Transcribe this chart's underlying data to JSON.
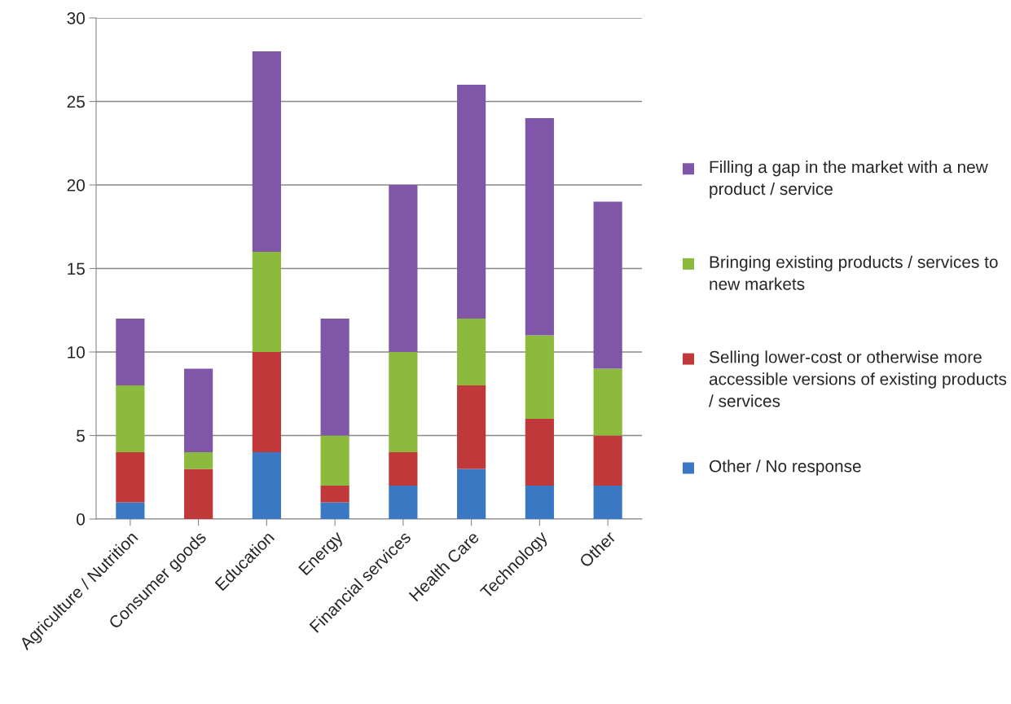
{
  "chart_data": {
    "type": "bar",
    "stacked": true,
    "categories": [
      "Agriculture / Nutrition",
      "Consumer goods",
      "Education",
      "Energy",
      "Financial services",
      "Health Care",
      "Technology",
      "Other"
    ],
    "series": [
      {
        "name": "Other / No response",
        "color": "#3a78c4",
        "values": [
          1,
          0,
          4,
          1,
          2,
          3,
          2,
          2
        ]
      },
      {
        "name": "Selling lower-cost or otherwise more accessible versions of existing products / services",
        "color": "#c0383a",
        "values": [
          3,
          3,
          6,
          1,
          2,
          5,
          4,
          3
        ]
      },
      {
        "name": "Bringing existing products / services to new markets",
        "color": "#8cba3c",
        "values": [
          4,
          1,
          6,
          3,
          6,
          4,
          5,
          4
        ]
      },
      {
        "name": "Filling a gap in the market with a new product / service",
        "color": "#7f56a8",
        "values": [
          4,
          5,
          12,
          7,
          10,
          14,
          13,
          10
        ]
      }
    ],
    "ylim": [
      0,
      30
    ],
    "yticks": [
      0,
      5,
      10,
      15,
      20,
      25,
      30
    ],
    "grid": "y",
    "legend": "right"
  }
}
